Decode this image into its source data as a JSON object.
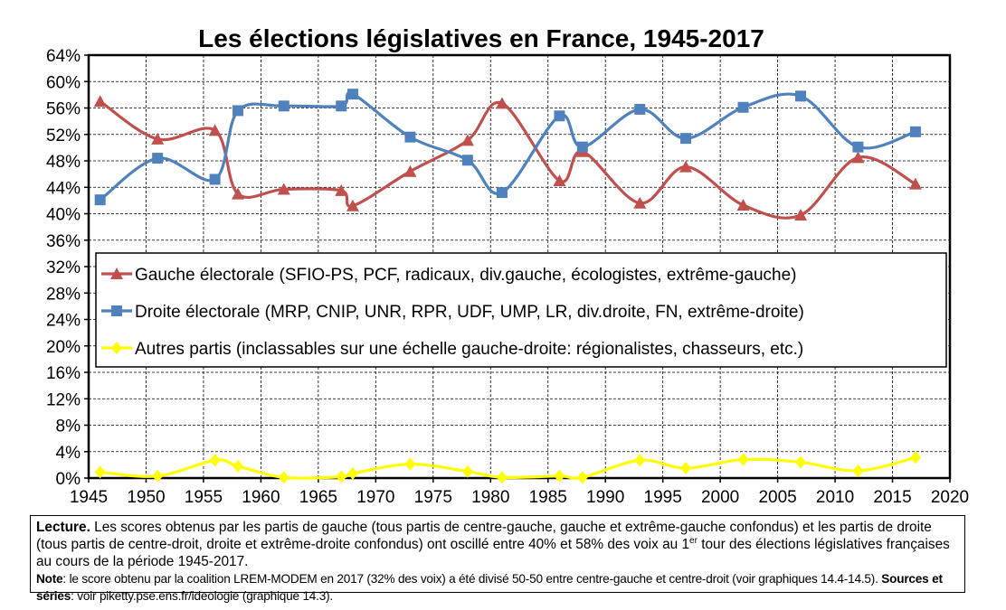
{
  "chart_data": {
    "type": "line",
    "title": "Les élections législatives en France, 1945-2017",
    "xlabel": "",
    "ylabel": "",
    "xlim": [
      1945,
      2020
    ],
    "ylim": [
      0,
      64
    ],
    "x_ticks": [
      "1945",
      "1950",
      "1955",
      "1960",
      "1965",
      "1970",
      "1975",
      "1980",
      "1985",
      "1990",
      "1995",
      "2000",
      "2005",
      "2010",
      "2015",
      "2020"
    ],
    "y_ticks": [
      "0%",
      "4%",
      "8%",
      "12%",
      "16%",
      "20%",
      "24%",
      "28%",
      "32%",
      "36%",
      "40%",
      "44%",
      "48%",
      "52%",
      "56%",
      "60%",
      "64%"
    ],
    "grid": true,
    "legend_position": "center-left",
    "series": [
      {
        "name": "Gauche électorale (SFIO-PS, PCF, radicaux, div.gauche, écologistes, extrême-gauche)",
        "color": "#c0504d",
        "marker": "triangle",
        "x": [
          1946,
          1951,
          1956,
          1958,
          1962,
          1967,
          1968,
          1973,
          1978,
          1981,
          1986,
          1988,
          1993,
          1997,
          2002,
          2007,
          2012,
          2017
        ],
        "y": [
          57,
          51.3,
          52.6,
          43,
          43.7,
          43.5,
          41.2,
          46.4,
          51.1,
          56.7,
          45,
          49.4,
          41.6,
          47.1,
          41.3,
          39.8,
          48.5,
          44.5
        ]
      },
      {
        "name": "Droite électorale (MRP, CNIP, UNR, RPR, UDF, UMP, LR, div.droite, FN, extrême-droite)",
        "color": "#4f81bd",
        "marker": "square",
        "x": [
          1946,
          1951,
          1956,
          1958,
          1962,
          1967,
          1968,
          1973,
          1978,
          1981,
          1986,
          1988,
          1993,
          1997,
          2002,
          2007,
          2012,
          2017
        ],
        "y": [
          42.1,
          48.4,
          45.2,
          55.6,
          56.3,
          56.3,
          58.1,
          51.6,
          48.1,
          43.2,
          54.8,
          50.1,
          55.8,
          51.4,
          56.1,
          57.8,
          50.1,
          52.4
        ]
      },
      {
        "name": "Autres partis (inclassables sur une échelle gauche-droite: régionalistes, chasseurs, etc.)",
        "color": "#ffff00",
        "marker": "diamond",
        "x": [
          1946,
          1951,
          1956,
          1958,
          1962,
          1967,
          1968,
          1973,
          1978,
          1981,
          1986,
          1988,
          1993,
          1997,
          2002,
          2007,
          2012,
          2017
        ],
        "y": [
          0.9,
          0.3,
          2.7,
          1.8,
          0.1,
          0.2,
          0.7,
          2.1,
          1,
          0.1,
          0.3,
          0.1,
          2.7,
          1.5,
          2.8,
          2.4,
          1.1,
          3.1
        ]
      }
    ]
  },
  "note": {
    "lecture_label": "Lecture.",
    "lecture_text_1": " Les scores obtenus par les partis de gauche (tous partis de centre-gauche, gauche et extrême-gauche confondus) et les partis de droite (tous partis de centre-droit, droite et extrême-droite confondus) ont oscillé entre 40% et 58% des voix au 1",
    "lecture_sup": "er",
    "lecture_text_2": " tour des élections législatives françaises au cours de la période 1945-2017.",
    "note_label": " Note",
    "note_text": ": le score obtenu par la coalition LREM-MODEM en 2017 (32% des voix) a été divisé 50-50 entre centre-gauche et centre-droit (voir graphiques 14.4-14.5).",
    "sources_label": " Sources et séries",
    "sources_text": ": voir piketty.pse.ens.fr/ideologie (graphique 14.3)."
  }
}
